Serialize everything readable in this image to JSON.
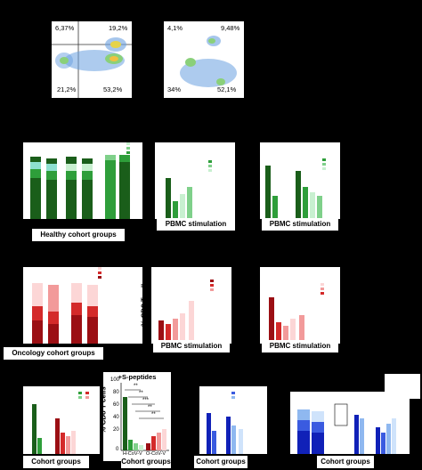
{
  "flow_plots": [
    {
      "quadrants": {
        "ul": "6,37%",
        "ur": "19,2%",
        "ll": "21,2%",
        "lr": "53,2%"
      }
    },
    {
      "quadrants": {
        "ul": "4,1%",
        "ur": "9,48%",
        "ll": "34%",
        "lr": "52,1%"
      }
    }
  ],
  "ylabel": "% CD8 T cells",
  "xlabels": {
    "healthy": "Healthy cohort groups",
    "pbmc": "PBMC stimulation",
    "oncology": "Oncology cohort groups",
    "cohort": "Cohort groups"
  },
  "inset": {
    "title": "+S-peptides",
    "yticks": [
      "100",
      "80",
      "60",
      "40",
      "20",
      "0"
    ],
    "xticks": [
      "H-CoV-V",
      "O-CoV-V"
    ],
    "sig": [
      "**",
      "**",
      "***",
      "**",
      "**"
    ]
  },
  "colors": {
    "dark_green": "#1a5e1a",
    "green": "#2e9e3a",
    "light_green": "#7fd08a",
    "pale_green": "#c8f0d0",
    "teal": "#8de0d0",
    "dark_red": "#9b0f14",
    "red": "#d42a2a",
    "pink": "#f29a9a",
    "pale_pink": "#fcd6d6",
    "dark_blue": "#1021b8",
    "blue": "#3a5be0",
    "light_blue": "#8fb8f0",
    "pale_blue": "#cfe3fb"
  }
}
